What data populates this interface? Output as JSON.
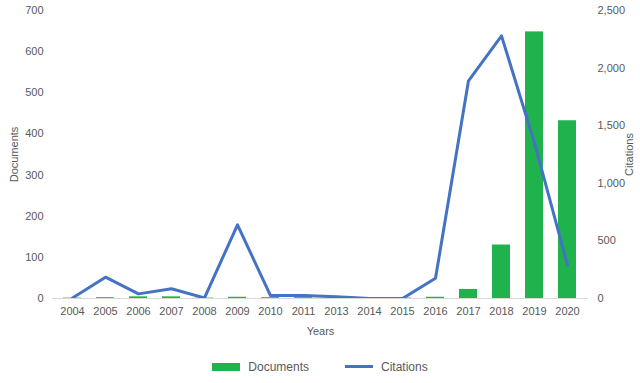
{
  "chart_data": {
    "type": "bar",
    "categories": [
      "2004",
      "2005",
      "2006",
      "2007",
      "2008",
      "2009",
      "2010",
      "2011",
      "2013",
      "2014",
      "2015",
      "2016",
      "2017",
      "2018",
      "2019",
      "2020"
    ],
    "x_label": "Years",
    "y_label": "Documents",
    "y2_label": "Citations",
    "series": [
      {
        "name": "Documents",
        "type": "bar",
        "axis": "y",
        "color": "#20b24c",
        "values": [
          1,
          2,
          4,
          4,
          1,
          3,
          2,
          2,
          1,
          1,
          1,
          3,
          22,
          130,
          648,
          432
        ]
      },
      {
        "name": "Citations",
        "type": "line",
        "axis": "y2",
        "color": "#4472c4",
        "values": [
          5,
          185,
          40,
          85,
          5,
          640,
          25,
          25,
          15,
          0,
          0,
          175,
          1890,
          2280,
          1350,
          290
        ]
      }
    ],
    "ylim": [
      0,
      700
    ],
    "yticks": [
      0,
      100,
      200,
      300,
      400,
      500,
      600,
      700
    ],
    "y2lim": [
      0,
      2500
    ],
    "y2ticks": [
      0,
      500,
      1000,
      1500,
      2000,
      2500
    ],
    "grid": false,
    "legend": "bottom"
  }
}
